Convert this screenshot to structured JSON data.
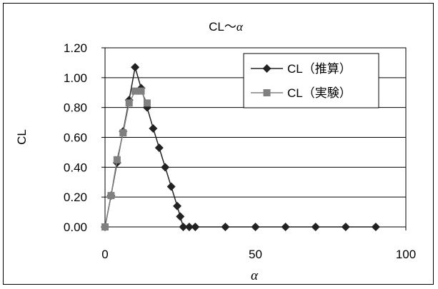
{
  "chart_data": {
    "type": "line",
    "title_prefix": "CL〜",
    "title_symbol": "α",
    "xlabel": "α",
    "ylabel": "CL",
    "xlim": [
      0,
      100
    ],
    "ylim": [
      0,
      1.2
    ],
    "x_ticks": [
      "0",
      "50",
      "100"
    ],
    "y_ticks": [
      "0.00",
      "0.20",
      "0.40",
      "0.60",
      "0.80",
      "1.00",
      "1.20"
    ],
    "grid": "horizontal",
    "legend_position": "top-right",
    "series": [
      {
        "name": "CL（推算）",
        "marker": "diamond",
        "color": "#222222",
        "x": [
          0,
          2,
          4,
          6,
          8,
          10,
          12,
          14,
          16,
          18,
          20,
          22,
          24,
          25,
          26,
          28,
          30,
          40,
          50,
          60,
          70,
          80,
          90
        ],
        "y": [
          0.0,
          0.21,
          0.43,
          0.64,
          0.85,
          1.07,
          0.93,
          0.8,
          0.66,
          0.53,
          0.4,
          0.27,
          0.14,
          0.07,
          0.0,
          0.0,
          0.0,
          0.0,
          0.0,
          0.0,
          0.0,
          0.0,
          0.0
        ]
      },
      {
        "name": "CL（実験）",
        "marker": "square",
        "color": "#808080",
        "x": [
          0,
          2,
          4,
          6,
          8,
          10,
          12,
          14
        ],
        "y": [
          0.0,
          0.21,
          0.45,
          0.63,
          0.83,
          0.91,
          0.91,
          0.83
        ]
      }
    ]
  }
}
